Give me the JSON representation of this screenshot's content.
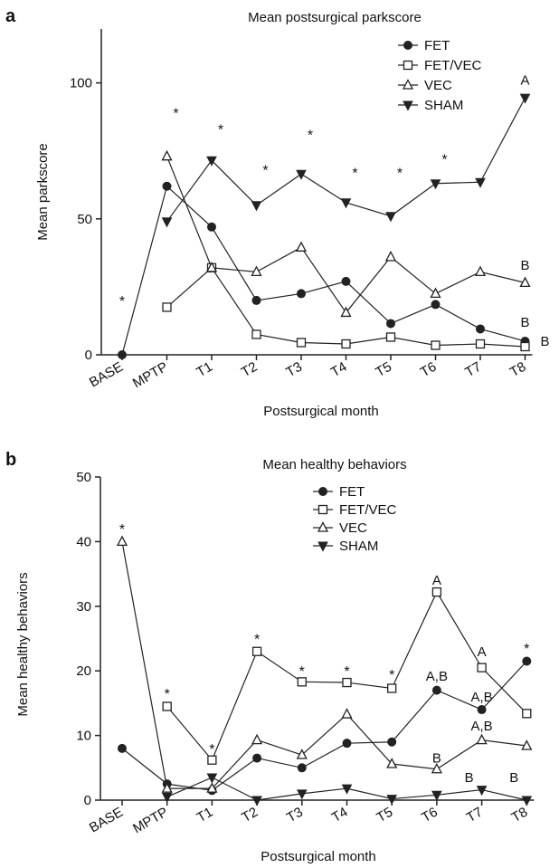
{
  "chart_data": [
    {
      "panel": "a",
      "type": "line",
      "title": "Mean postsurgical parkscore",
      "xlabel": "Postsurgical month",
      "ylabel": "Mean parkscore",
      "ylim": [
        0,
        120
      ],
      "yticks": [
        0,
        50,
        100
      ],
      "categories": [
        "BASE",
        "MPTP",
        "T1",
        "T2",
        "T3",
        "T4",
        "T5",
        "T6",
        "T7",
        "T8"
      ],
      "legend_position": "top-right",
      "series": [
        {
          "name": "FET",
          "marker": "filled-circle",
          "values": [
            0,
            62,
            47,
            20,
            22.5,
            27,
            11.5,
            18.5,
            9.5,
            5
          ]
        },
        {
          "name": "FET/VEC",
          "marker": "open-square",
          "values": [
            null,
            17.5,
            32,
            7.5,
            4.5,
            4,
            6.5,
            3.5,
            4,
            3
          ]
        },
        {
          "name": "VEC",
          "marker": "open-triangle",
          "values": [
            null,
            73,
            32,
            30.5,
            39.5,
            15.5,
            36,
            22.5,
            30.5,
            26.5
          ]
        },
        {
          "name": "SHAM",
          "marker": "filled-down-triangle",
          "values": [
            null,
            49,
            71.5,
            55,
            66.5,
            56,
            51,
            63,
            63.5,
            94.5
          ]
        }
      ],
      "stars": [
        {
          "text": "*",
          "x": "BASE",
          "y": 20
        },
        {
          "text": "*",
          "x": "MPTP",
          "y": 89
        },
        {
          "text": "*",
          "x": "T1",
          "y": 83
        },
        {
          "text": "*",
          "x": "T2",
          "y": 68
        },
        {
          "text": "*",
          "x": "T3",
          "y": 81
        },
        {
          "text": "*",
          "x": "T4",
          "y": 67
        },
        {
          "text": "*",
          "x": "T5",
          "y": 67
        },
        {
          "text": "*",
          "x": "T6",
          "y": 72
        }
      ],
      "letters": [
        {
          "text": "A",
          "x": "T8",
          "y": 101
        },
        {
          "text": "B",
          "x": "T8",
          "y": 33
        },
        {
          "text": "B",
          "x": "T8",
          "y": 12
        },
        {
          "text": "B",
          "x": "T8",
          "y": 5
        }
      ]
    },
    {
      "panel": "b",
      "type": "line",
      "title": "Mean healthy behaviors",
      "xlabel": "Postsurgical month",
      "ylabel": "Mean healthy behaviors",
      "ylim": [
        0,
        50
      ],
      "yticks": [
        0,
        10,
        20,
        30,
        40,
        50
      ],
      "categories": [
        "BASE",
        "MPTP",
        "T1",
        "T2",
        "T3",
        "T4",
        "T5",
        "T6",
        "T7",
        "T8"
      ],
      "legend_position": "top-right",
      "series": [
        {
          "name": "FET",
          "marker": "filled-circle",
          "values": [
            8,
            2.5,
            1.5,
            6.5,
            5,
            8.8,
            9,
            17,
            14,
            21.5
          ]
        },
        {
          "name": "FET/VEC",
          "marker": "open-square",
          "values": [
            null,
            14.5,
            6.2,
            23,
            18.3,
            18.2,
            17.3,
            32.2,
            20.5,
            13.4
          ]
        },
        {
          "name": "VEC",
          "marker": "open-triangle",
          "values": [
            40,
            1.8,
            1.8,
            9.3,
            7,
            13.3,
            5.6,
            4.8,
            9.3,
            8.4
          ]
        },
        {
          "name": "SHAM",
          "marker": "filled-down-triangle",
          "values": [
            null,
            0.5,
            3.5,
            0,
            1,
            1.8,
            0.2,
            0.8,
            1.6,
            0
          ]
        }
      ],
      "stars": [
        {
          "text": "*",
          "x": "BASE",
          "y": 42
        },
        {
          "text": "*",
          "x": "MPTP",
          "y": 16.5
        },
        {
          "text": "*",
          "x": "T1",
          "y": 8
        },
        {
          "text": "*",
          "x": "T2",
          "y": 25
        },
        {
          "text": "*",
          "x": "T3",
          "y": 20
        },
        {
          "text": "*",
          "x": "T4",
          "y": 20
        },
        {
          "text": "*",
          "x": "T5",
          "y": 19.5
        },
        {
          "text": "*",
          "x": "T8",
          "y": 23.5
        }
      ],
      "letters": [
        {
          "text": "A",
          "x": "T6",
          "y": 34
        },
        {
          "text": "A,B",
          "x": "T6",
          "y": 19.2
        },
        {
          "text": "B",
          "x": "T6",
          "y": 6.5
        },
        {
          "text": "A",
          "x": "T7",
          "y": 23
        },
        {
          "text": "A,B",
          "x": "T7",
          "y": 16
        },
        {
          "text": "A,B",
          "x": "T7",
          "y": 11.5
        },
        {
          "text": "B",
          "x": "T7",
          "y": 3.5
        },
        {
          "text": "B",
          "x": "T8",
          "y": 3.5
        }
      ]
    }
  ]
}
